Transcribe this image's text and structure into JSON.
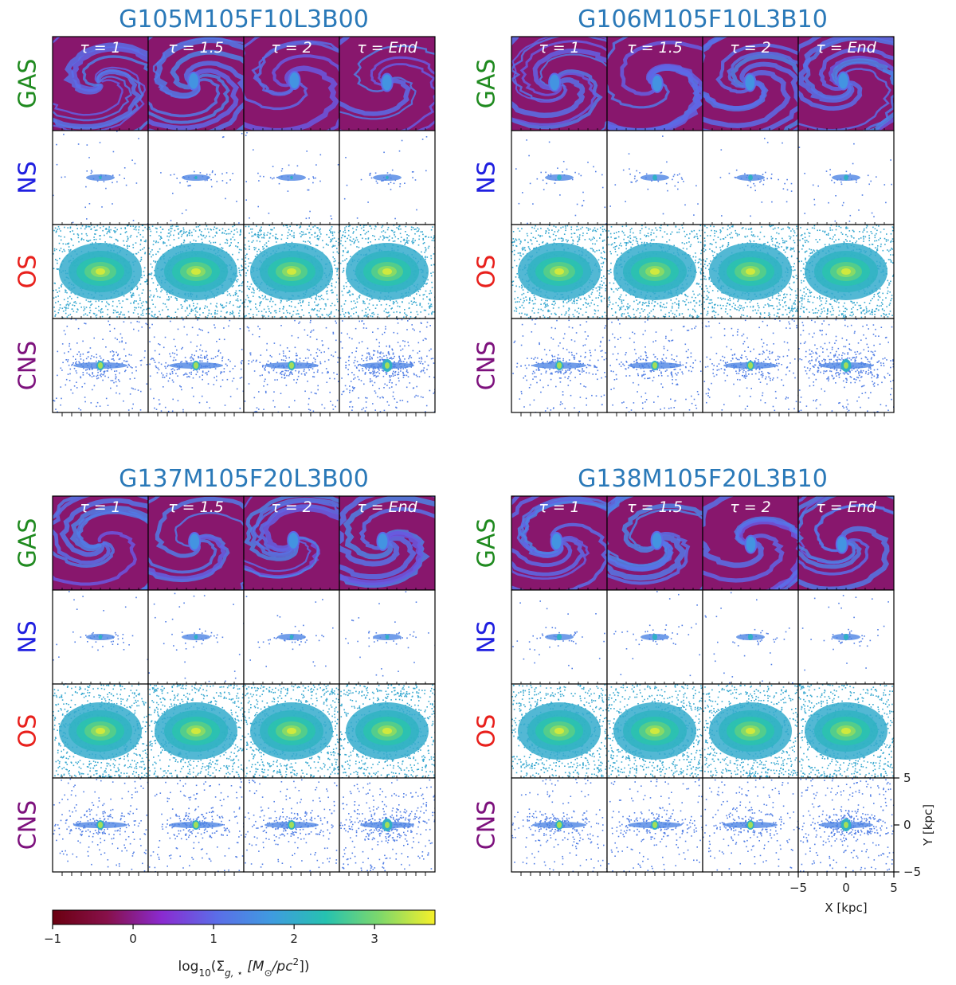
{
  "chart_data": {
    "type": "heatmap",
    "title": "",
    "panels": [
      {
        "id": "G105M105F10L3B00",
        "title": "G105M105F10L3B00",
        "seed": 11,
        "ns_level": 0.35
      },
      {
        "id": "G106M105F10L3B10",
        "title": "G106M105F10L3B10",
        "seed": 23,
        "ns_level": 0.6
      },
      {
        "id": "G137M105F20L3B00",
        "title": "G137M105F20L3B00",
        "seed": 37,
        "ns_level": 0.5
      },
      {
        "id": "G138M105F20L3B10",
        "title": "G138M105F20L3B10",
        "seed": 41,
        "ns_level": 0.65
      }
    ],
    "rows": [
      {
        "key": "gas",
        "label": "GAS",
        "color": "#1f8a1f"
      },
      {
        "key": "ns",
        "label": "NS",
        "color": "#1f1fe0"
      },
      {
        "key": "os",
        "label": "OS",
        "color": "#e8201c"
      },
      {
        "key": "cns",
        "label": "CNS",
        "color": "#7d117d"
      }
    ],
    "columns": [
      {
        "tau": "τ = 1"
      },
      {
        "tau": "τ = 1.5"
      },
      {
        "tau": "τ = 2"
      },
      {
        "tau": "τ = End"
      }
    ],
    "xlabel": "X [kpc]",
    "ylabel": "Y [kpc]",
    "xlim": [
      -5,
      5
    ],
    "ylim": [
      -5,
      5
    ],
    "x_ticks": [
      {
        "value": -5,
        "label": "−5"
      },
      {
        "value": 0,
        "label": "0"
      },
      {
        "value": 5,
        "label": "5"
      }
    ],
    "y_ticks": [
      {
        "value": 5,
        "label": "5"
      },
      {
        "value": 0,
        "label": "0"
      },
      {
        "value": -5,
        "label": "−5"
      }
    ],
    "colorbar": {
      "label": "log10(Σg, ⋆ [M⊙/pc2])",
      "label_main": "log",
      "label_sub": "10",
      "label_rest": "(Σ",
      "label_sub2": "g, ⋆",
      "label_units": " [M",
      "label_sun": "⊙",
      "label_pc": "/pc",
      "label_sup": "2",
      "label_end": "])",
      "vmin": -1,
      "vmax": 3.75,
      "ticks": [
        {
          "value": -1,
          "label": "−1"
        },
        {
          "value": 0,
          "label": "0"
        },
        {
          "value": 1,
          "label": "1"
        },
        {
          "value": 2,
          "label": "2"
        },
        {
          "value": 3,
          "label": "3"
        }
      ],
      "colormap": "viridis-rainbow",
      "stops": [
        "#6b0010",
        "#87104a",
        "#8a2bd0",
        "#5b6de8",
        "#3f9be0",
        "#26c2b0",
        "#7fd86a",
        "#f6f02a"
      ]
    }
  }
}
